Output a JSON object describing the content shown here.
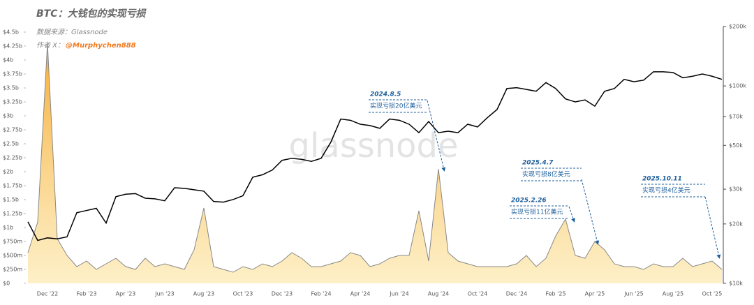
{
  "chart_data": {
    "type": "dual-axis-line",
    "title": "BTC：大钱包的实现亏损",
    "subtitle": "数据来源：Glassnode",
    "author_label": "作者 X：",
    "author_handle": "@Murphychen888",
    "watermark": "glassnode",
    "categories": [
      null,
      null,
      "Dec '22",
      null,
      null,
      null,
      "Feb '23",
      null,
      null,
      null,
      "Apr '23",
      null,
      null,
      null,
      "Jun '23",
      null,
      null,
      null,
      "Aug '23",
      null,
      null,
      null,
      "Oct '23",
      null,
      null,
      null,
      "Dec '23",
      null,
      null,
      null,
      "Feb '24",
      null,
      null,
      null,
      "Apr '24",
      null,
      null,
      null,
      "Jun '24",
      null,
      null,
      null,
      "Aug '24",
      null,
      null,
      null,
      "Oct '24",
      null,
      null,
      null,
      "Dec '24",
      null,
      null,
      null,
      "Feb '25",
      null,
      null,
      null,
      "Apr '25",
      null,
      null,
      null,
      "Jun '25",
      null,
      null,
      null,
      "Aug '25",
      null,
      null,
      null,
      "Oct '25",
      null
    ],
    "series": [
      {
        "color": "#f0a030",
        "values": [
          0.55,
          1.1,
          4.3,
          0.8,
          0.5,
          0.3,
          0.4,
          0.25,
          0.35,
          0.45,
          0.3,
          0.25,
          0.45,
          0.3,
          0.35,
          0.3,
          0.25,
          0.6,
          1.35,
          0.3,
          0.25,
          0.2,
          0.3,
          0.25,
          0.35,
          0.3,
          0.4,
          0.55,
          0.45,
          0.3,
          0.3,
          0.35,
          0.4,
          0.55,
          0.5,
          0.3,
          0.35,
          0.45,
          0.5,
          0.5,
          1.3,
          0.4,
          2.05,
          0.55,
          0.4,
          0.35,
          0.3,
          0.3,
          0.3,
          0.3,
          0.35,
          0.5,
          0.3,
          0.45,
          0.85,
          1.15,
          0.5,
          0.45,
          0.75,
          0.6,
          0.35,
          0.3,
          0.3,
          0.25,
          0.35,
          0.3,
          0.3,
          0.45,
          0.3,
          0.35,
          0.4,
          0.25
        ]
      },
      {
        "color": "#000000",
        "axis": "y2",
        "values": [
          20500,
          16500,
          17000,
          16800,
          17200,
          22800,
          23400,
          24000,
          20200,
          27500,
          28300,
          28500,
          27000,
          26800,
          26200,
          30500,
          30300,
          29800,
          29300,
          26000,
          25800,
          26600,
          27800,
          34500,
          35500,
          37500,
          42000,
          43000,
          42500,
          41500,
          43000,
          52000,
          68000,
          67000,
          64000,
          63000,
          61000,
          68000,
          67000,
          64000,
          58000,
          66000,
          58000,
          59000,
          58000,
          64000,
          62000,
          69000,
          76000,
          97000,
          98000,
          96000,
          94000,
          104000,
          97000,
          86000,
          83000,
          85000,
          79000,
          94000,
          97000,
          108000,
          105000,
          107000,
          118000,
          118000,
          117000,
          110000,
          112000,
          115000,
          112000,
          108000
        ]
      }
    ],
    "ylim": [
      0,
      4.5
    ],
    "yticks": [
      {
        "value": 0,
        "label": "$0"
      },
      {
        "value": 0.25,
        "label": "$250m"
      },
      {
        "value": 0.5,
        "label": "$500m"
      },
      {
        "value": 0.75,
        "label": "$750m"
      },
      {
        "value": 1,
        "label": "$1b"
      },
      {
        "value": 1.25,
        "label": "$1.25b"
      },
      {
        "value": 1.5,
        "label": "$1.5b"
      },
      {
        "value": 1.75,
        "label": "$1.75b"
      },
      {
        "value": 2,
        "label": "$2b"
      },
      {
        "value": 2.25,
        "label": "$2.25b"
      },
      {
        "value": 2.5,
        "label": "$2.5b"
      },
      {
        "value": 2.75,
        "label": "$2.75b"
      },
      {
        "value": 3,
        "label": "$3b"
      },
      {
        "value": 3.25,
        "label": "$3.25b"
      },
      {
        "value": 3.5,
        "label": "$3.5b"
      },
      {
        "value": 3.75,
        "label": "$3.75b"
      },
      {
        "value": 4,
        "label": "$4b"
      },
      {
        "value": 4.25,
        "label": "$4.25b"
      },
      {
        "value": 4.5,
        "label": "$4.5b"
      }
    ],
    "y2lim": [
      10000,
      200000
    ],
    "y2ticks": [
      {
        "value": 10000,
        "label": "$10k"
      },
      {
        "value": 20000,
        "label": "$20k"
      },
      {
        "value": 30000,
        "label": "$30k"
      },
      {
        "value": 50000,
        "label": "$50k"
      },
      {
        "value": 70000,
        "label": "$70k"
      },
      {
        "value": 100000,
        "label": "$100k"
      },
      {
        "value": 200000,
        "label": "$200k"
      }
    ],
    "y2_log": true,
    "annotations": [
      {
        "date": "2024.8.5",
        "text": "实现亏损20亿美元"
      },
      {
        "date": "2025.4.7",
        "text": "实现亏损8亿美元"
      },
      {
        "date": "2025.2.26",
        "text": "实现亏损11亿美元"
      },
      {
        "date": "2025.10.11",
        "text": "实现亏损4亿美元"
      }
    ]
  }
}
